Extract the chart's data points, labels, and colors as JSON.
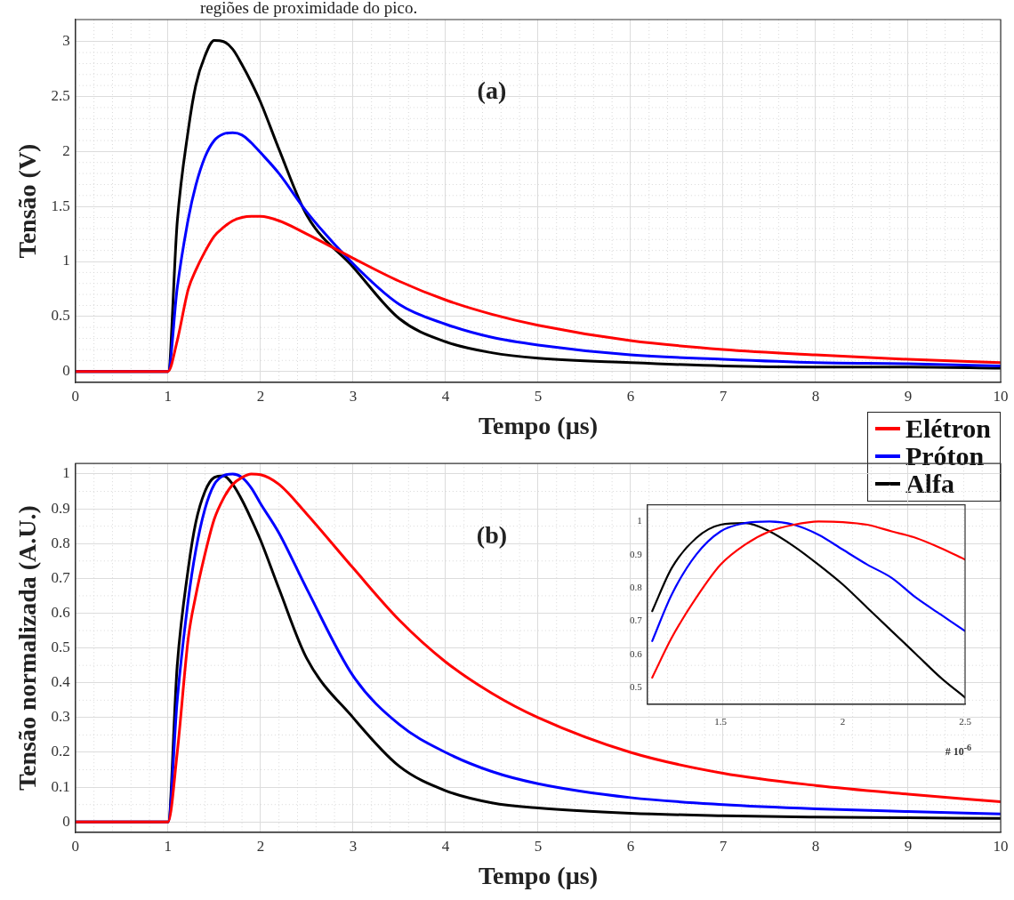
{
  "chart_data": [
    {
      "type": "line",
      "title": "(a)",
      "xlabel": "Tempo (µs)",
      "ylabel": "Tensão (V)",
      "annotations": [
        "regiões de proximidade do pico."
      ],
      "x": [
        0,
        1,
        1.1,
        1.22,
        1.3,
        1.4,
        1.5,
        1.6,
        1.7,
        1.8,
        1.9,
        2,
        2.2,
        2.5,
        3,
        3.5,
        4,
        4.5,
        5,
        6,
        7,
        8,
        9,
        10
      ],
      "series": [
        {
          "name": "Elétron",
          "color": "#ff0000",
          "values": [
            0,
            0,
            0.28,
            0.75,
            0.92,
            1.09,
            1.23,
            1.31,
            1.37,
            1.4,
            1.41,
            1.41,
            1.37,
            1.25,
            1.03,
            0.82,
            0.65,
            0.52,
            0.42,
            0.28,
            0.2,
            0.15,
            0.11,
            0.08
          ]
        },
        {
          "name": "Próton",
          "color": "#0000ff",
          "values": [
            0,
            0,
            0.76,
            1.39,
            1.69,
            1.95,
            2.1,
            2.16,
            2.17,
            2.15,
            2.08,
            1.99,
            1.8,
            1.45,
            0.98,
            0.61,
            0.43,
            0.31,
            0.24,
            0.15,
            0.11,
            0.08,
            0.07,
            0.05
          ]
        },
        {
          "name": "Alfa",
          "color": "#000000",
          "values": [
            0,
            0,
            1.36,
            2.2,
            2.6,
            2.87,
            3.01,
            3.0,
            2.93,
            2.79,
            2.63,
            2.45,
            2.02,
            1.42,
            0.95,
            0.48,
            0.27,
            0.17,
            0.12,
            0.08,
            0.05,
            0.04,
            0.04,
            0.03
          ]
        }
      ],
      "xlim": [
        0,
        10
      ],
      "xticks": [
        0,
        1,
        2,
        3,
        4,
        5,
        6,
        7,
        8,
        9,
        10
      ],
      "ylim": [
        -0.1,
        3.2
      ],
      "yticks": [
        0,
        0.5,
        1,
        1.5,
        2,
        2.5,
        3
      ],
      "grid": true,
      "legend": "bottom right",
      "marker": "none",
      "line_style": "solid"
    },
    {
      "type": "line",
      "title": "(b)",
      "xlabel": "Tempo (µs)",
      "ylabel": "Tensão normalizada (A.U.)",
      "x": [
        0,
        1,
        1.1,
        1.22,
        1.3,
        1.4,
        1.5,
        1.6,
        1.7,
        1.8,
        1.9,
        2,
        2.2,
        2.5,
        3,
        3.5,
        4,
        4.5,
        5,
        6,
        7,
        8,
        9,
        10
      ],
      "series": [
        {
          "color": "#ff0000",
          "values": [
            0,
            0,
            0.2,
            0.53,
            0.65,
            0.77,
            0.87,
            0.93,
            0.97,
            0.99,
            1.0,
            0.998,
            0.97,
            0.885,
            0.73,
            0.58,
            0.46,
            0.37,
            0.3,
            0.2,
            0.14,
            0.105,
            0.08,
            0.058
          ]
        },
        {
          "color": "#0000ff",
          "values": [
            0,
            0,
            0.35,
            0.64,
            0.78,
            0.9,
            0.97,
            0.995,
            1.0,
            0.99,
            0.96,
            0.915,
            0.83,
            0.67,
            0.42,
            0.28,
            0.2,
            0.145,
            0.11,
            0.07,
            0.05,
            0.038,
            0.03,
            0.023
          ]
        },
        {
          "color": "#000000",
          "values": [
            0,
            0,
            0.45,
            0.73,
            0.86,
            0.95,
            0.99,
            0.995,
            0.97,
            0.925,
            0.87,
            0.81,
            0.67,
            0.47,
            0.3,
            0.16,
            0.09,
            0.055,
            0.04,
            0.025,
            0.018,
            0.014,
            0.012,
            0.01
          ]
        }
      ],
      "xlim": [
        0,
        10
      ],
      "xticks": [
        0,
        1,
        2,
        3,
        4,
        5,
        6,
        7,
        8,
        9,
        10
      ],
      "ylim": [
        -0.03,
        1.03
      ],
      "yticks": [
        0,
        0.1,
        0.2,
        0.3,
        0.4,
        0.5,
        0.6,
        0.7,
        0.8,
        0.9,
        1
      ],
      "grid": true,
      "marker": "none",
      "line_style": "solid"
    },
    {
      "type": "line",
      "annotations": [
        "# 10$^{-6}$"
      ],
      "x": [
        1.22,
        1.3,
        1.4,
        1.5,
        1.6,
        1.7,
        1.8,
        1.9,
        2,
        2.1,
        2.2,
        2.3,
        2.4,
        2.5
      ],
      "series": [
        {
          "color": "#ff0000",
          "values": [
            0.53,
            0.65,
            0.77,
            0.87,
            0.93,
            0.97,
            0.99,
            1.0,
            0.998,
            0.99,
            0.97,
            0.95,
            0.92,
            0.885
          ]
        },
        {
          "color": "#0000ff",
          "values": [
            0.64,
            0.78,
            0.9,
            0.97,
            0.995,
            1.0,
            0.99,
            0.96,
            0.915,
            0.87,
            0.83,
            0.77,
            0.72,
            0.67
          ]
        },
        {
          "color": "#000000",
          "values": [
            0.73,
            0.86,
            0.95,
            0.99,
            0.995,
            0.97,
            0.925,
            0.87,
            0.81,
            0.74,
            0.67,
            0.6,
            0.53,
            0.47
          ]
        }
      ],
      "xlim": [
        1.2,
        2.5
      ],
      "xticks": [
        1.5,
        2,
        2.5
      ],
      "ylim": [
        0.45,
        1.05
      ],
      "yticks": [
        0.5,
        0.6,
        0.7,
        0.8,
        0.9,
        1
      ],
      "grid": false,
      "marker": "none",
      "line_style": "solid"
    }
  ]
}
